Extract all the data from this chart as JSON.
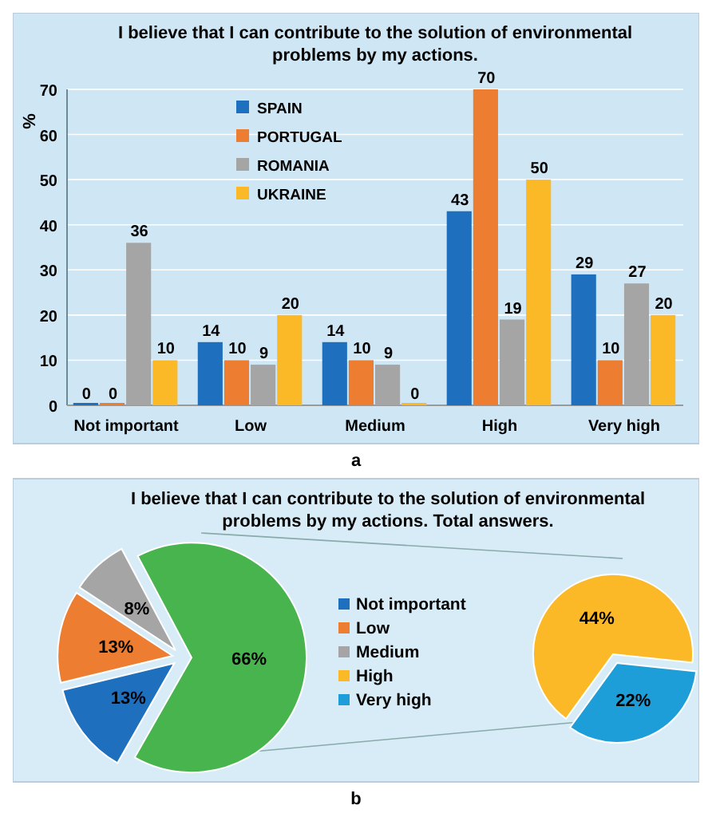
{
  "chart_data": [
    {
      "type": "bar",
      "title": "I believe that I can contribute to the solution of environmental problems by my actions.",
      "ylabel": "%",
      "categories": [
        "Not important",
        "Low",
        "Medium",
        "High",
        "Very high"
      ],
      "series": [
        {
          "name": "SPAIN",
          "color": "#1f6fbf",
          "values": [
            0,
            14,
            14,
            43,
            29
          ]
        },
        {
          "name": "PORTUGAL",
          "color": "#ed7d31",
          "values": [
            0,
            10,
            10,
            70,
            10
          ]
        },
        {
          "name": "ROMANIA",
          "color": "#a5a5a5",
          "values": [
            36,
            9,
            9,
            19,
            27
          ]
        },
        {
          "name": "UKRAINE",
          "color": "#fbb928",
          "values": [
            10,
            20,
            0,
            50,
            20
          ]
        }
      ],
      "ylim": [
        0,
        70
      ],
      "yticks": [
        0,
        10,
        20,
        30,
        40,
        50,
        60,
        70
      ],
      "grid": "y",
      "legend": "top",
      "data_labels": true,
      "annotations": [
        "a"
      ]
    },
    {
      "type": "pie",
      "title": "I believe that I can contribute to the solution of environmental problems by my actions. Total answers.",
      "categories": [
        "Not important",
        "Low",
        "Medium",
        null
      ],
      "values": [
        13,
        13,
        8,
        66
      ],
      "value_labels": [
        "13%",
        "13%",
        "8%",
        "66%"
      ],
      "colors": [
        "#1f6fbf",
        "#ed7d31",
        "#a5a5a5",
        "#47b44e"
      ],
      "legend": "right",
      "annotations": [
        "b"
      ]
    },
    {
      "type": "pie",
      "categories": [
        "High",
        "Very high"
      ],
      "values": [
        44,
        22
      ],
      "value_labels": [
        "44%",
        "22%"
      ],
      "colors": [
        "#fbb928",
        "#1e9ed8"
      ],
      "legend": "left"
    }
  ]
}
